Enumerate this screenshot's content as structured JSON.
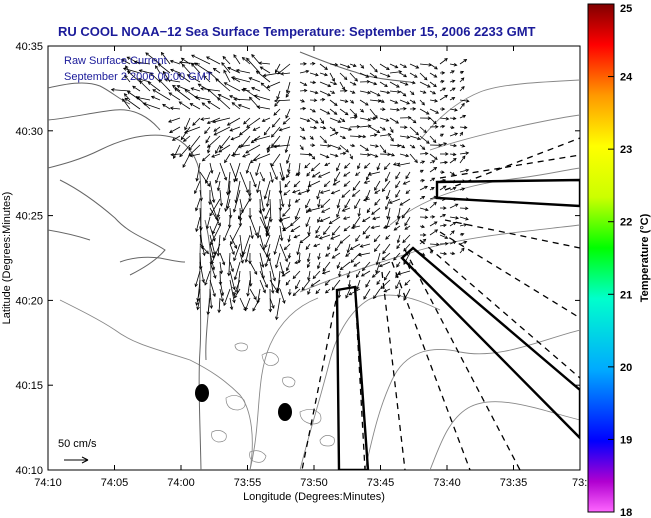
{
  "title": "RU COOL  NOAA−12  Sea Surface Temperature:  September 15, 2006 2233 GMT",
  "legend": {
    "line1": "Raw Surface Current",
    "line2": "September 2 2006 00:00 GMT"
  },
  "axes": {
    "xlabel": "Longitude (Degrees:Minutes)",
    "ylabel": "Latitude (Degrees:Minutes)",
    "xticks": [
      "74:10",
      "74:05",
      "74:00",
      "73:55",
      "73:50",
      "73:45",
      "73:40",
      "73:35",
      "73:3"
    ],
    "yticks": [
      "40:35",
      "40:30",
      "40:25",
      "40:20",
      "40:15",
      "40:10"
    ]
  },
  "scale_label": "50 cm/s",
  "colorbar": {
    "label": "Temperature (°C)",
    "ticks": [
      "25",
      "24",
      "23",
      "22",
      "21",
      "20",
      "19",
      "18"
    ],
    "min": 18,
    "max": 25
  }
}
